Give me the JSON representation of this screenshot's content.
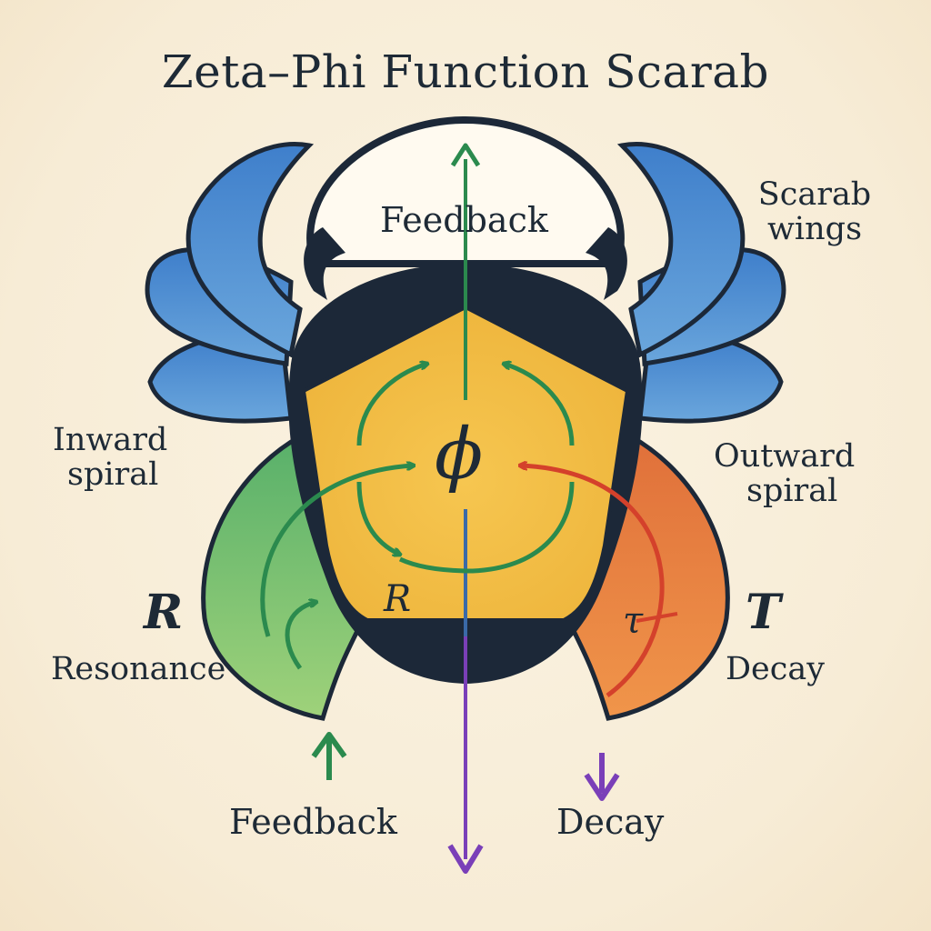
{
  "title": "Zeta–Phi Function Scarab",
  "labels": {
    "feedback_top": "Feedback",
    "scarab_wings_line1": "Scarab",
    "scarab_wings_line2": "wings",
    "inward_spiral_line1": "Inward",
    "inward_spiral_line2": "spiral",
    "outward_spiral_line1": "Outward",
    "outward_spiral_line2": "spiral",
    "r_symbol": "R",
    "resonance": "Resonance",
    "t_symbol": "T",
    "decay_right": "Decay",
    "phi_symbol": "ϕ",
    "r_inner": "R",
    "tau_symbol": "τ",
    "feedback_bottom": "Feedback",
    "decay_bottom": "Decay"
  },
  "colors": {
    "wing_blue": "#4a86c8",
    "body_dark": "#1c2838",
    "shield_yellow": "#f2c14a",
    "resonance_green": "#6fbf6a",
    "decay_orange": "#e8803e",
    "arrow_green": "#2b8a4e",
    "arrow_red": "#d4412b",
    "arrow_purple": "#7a3fb8"
  }
}
